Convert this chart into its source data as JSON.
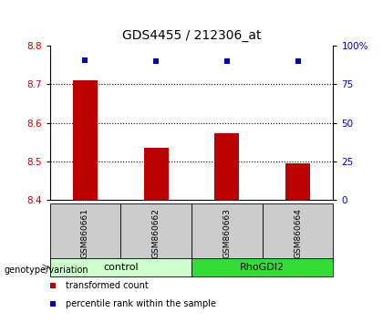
{
  "title": "GDS4455 / 212306_at",
  "samples": [
    "GSM860661",
    "GSM860662",
    "GSM860663",
    "GSM860664"
  ],
  "red_bar_values": [
    8.71,
    8.535,
    8.572,
    8.495
  ],
  "blue_dot_values": [
    8.762,
    8.758,
    8.758,
    8.758
  ],
  "bar_bottom": 8.4,
  "ylim_left": [
    8.4,
    8.8
  ],
  "ylim_right": [
    0,
    100
  ],
  "yticks_left": [
    8.4,
    8.5,
    8.6,
    8.7,
    8.8
  ],
  "yticks_right": [
    0,
    25,
    50,
    75,
    100
  ],
  "ytick_labels_right": [
    "0",
    "25",
    "50",
    "75",
    "100%"
  ],
  "red_color": "#BB0000",
  "blue_color": "#0000BB",
  "bar_width": 0.35,
  "group_label": "genotype/variation",
  "group_spans": [
    {
      "name": "control",
      "start": 0,
      "end": 1,
      "color": "#CCFFCC"
    },
    {
      "name": "RhoGDI2",
      "start": 2,
      "end": 3,
      "color": "#33DD33"
    }
  ],
  "legend_red": "transformed count",
  "legend_blue": "percentile rank within the sample",
  "title_fontsize": 10,
  "axis_fontsize": 7.5,
  "tick_label_color_left": "#CC0000",
  "tick_label_color_right": "#0000CC",
  "sample_box_color": "#CCCCCC",
  "sample_label_fontsize": 6.5
}
